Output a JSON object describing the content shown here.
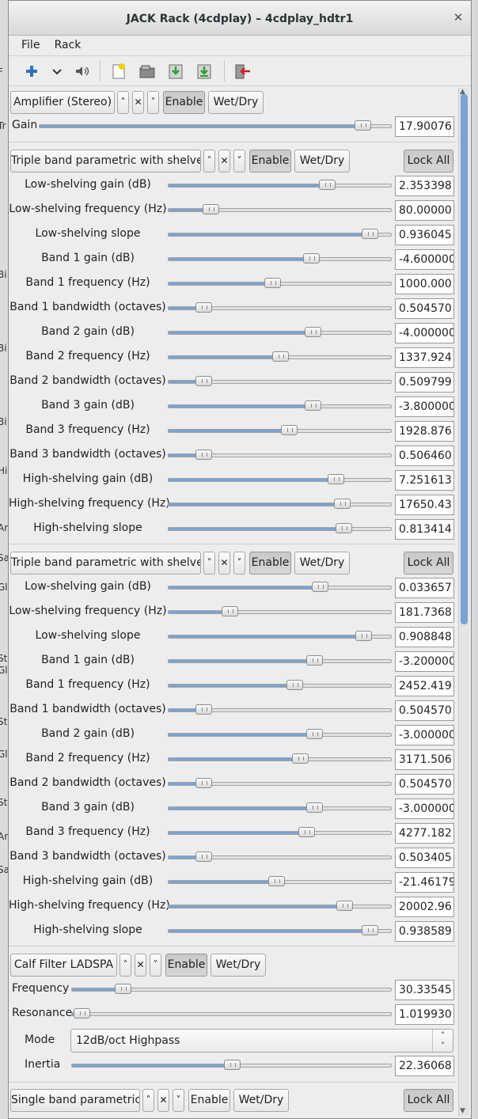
{
  "window": {
    "title": "JACK Rack (4cdplay) – 4cdplay_hdtr1",
    "close_glyph": "✕"
  },
  "menu": [
    {
      "label": "File"
    },
    {
      "label": "Rack"
    }
  ],
  "background_fragments": [
    "Tr",
    "F",
    "Bi",
    "Bi",
    "Bi",
    "Hig",
    "An",
    "Sa",
    "Gl",
    "Sta",
    "Gl",
    "Sta",
    "Gl",
    "Sta",
    "An",
    "Sa"
  ],
  "move_up_glyph": "˄",
  "remove_glyph": "✕",
  "move_down_glyph": "˅",
  "amplifier": {
    "name": "Amplifier (Stereo)",
    "enable": "Enable",
    "wetdry": "Wet/Dry",
    "controls": [
      {
        "label": "Gain",
        "value": "17.90076",
        "level": 0.92
      }
    ]
  },
  "eq1": {
    "name": "Triple band parametric with shelves",
    "enable": "Enable",
    "wetdry": "Wet/Dry",
    "lock": "Lock All",
    "controls": [
      {
        "label": "Low-shelving gain (dB)",
        "value": "2.353398",
        "level": 0.71
      },
      {
        "label": "Low-shelving frequency (Hz)",
        "value": "80.00000",
        "level": 0.19
      },
      {
        "label": "Low-shelving slope",
        "value": "0.936045",
        "level": 0.905
      },
      {
        "label": "Band 1 gain (dB)",
        "value": "-4.600000",
        "level": 0.64
      },
      {
        "label": "Band 1 frequency (Hz)",
        "value": "1000.000",
        "level": 0.465
      },
      {
        "label": "Band 1 bandwidth (octaves)",
        "value": "0.504570",
        "level": 0.155
      },
      {
        "label": "Band 2 gain (dB)",
        "value": "-4.000000",
        "level": 0.648
      },
      {
        "label": "Band 2 frequency (Hz)",
        "value": "1337.924",
        "level": 0.5
      },
      {
        "label": "Band 2 bandwidth (octaves)",
        "value": "0.509799",
        "level": 0.155
      },
      {
        "label": "Band 3 gain (dB)",
        "value": "-3.800000",
        "level": 0.648
      },
      {
        "label": "Band 3 frequency (Hz)",
        "value": "1928.876",
        "level": 0.54
      },
      {
        "label": "Band 3 bandwidth (octaves)",
        "value": "0.506460",
        "level": 0.155
      },
      {
        "label": "High-shelving gain (dB)",
        "value": "7.251613",
        "level": 0.75
      },
      {
        "label": "High-shelving frequency (Hz)",
        "value": "17650.43",
        "level": 0.778
      },
      {
        "label": "High-shelving slope",
        "value": "0.813414",
        "level": 0.785
      }
    ]
  },
  "eq2": {
    "name": "Triple band parametric with shelves",
    "enable": "Enable",
    "wetdry": "Wet/Dry",
    "lock": "Lock All",
    "controls": [
      {
        "label": "Low-shelving gain (dB)",
        "value": "0.033657",
        "level": 0.68
      },
      {
        "label": "Low-shelving frequency (Hz)",
        "value": "181.7368",
        "level": 0.275
      },
      {
        "label": "Low-shelving slope",
        "value": "0.908848",
        "level": 0.875
      },
      {
        "label": "Band 1 gain (dB)",
        "value": "-3.200000",
        "level": 0.655
      },
      {
        "label": "Band 1 frequency (Hz)",
        "value": "2452.419",
        "level": 0.565
      },
      {
        "label": "Band 1 bandwidth (octaves)",
        "value": "0.504570",
        "level": 0.155
      },
      {
        "label": "Band 2 gain (dB)",
        "value": "-3.000000",
        "level": 0.655
      },
      {
        "label": "Band 2 frequency (Hz)",
        "value": "3171.506",
        "level": 0.59
      },
      {
        "label": "Band 2 bandwidth (octaves)",
        "value": "0.504570",
        "level": 0.155
      },
      {
        "label": "Band 3 gain (dB)",
        "value": "-3.000000",
        "level": 0.655
      },
      {
        "label": "Band 3 frequency (Hz)",
        "value": "4277.182",
        "level": 0.62
      },
      {
        "label": "Band 3 bandwidth (octaves)",
        "value": "0.503405",
        "level": 0.155
      },
      {
        "label": "High-shelving gain (dB)",
        "value": "-21.46179",
        "level": 0.485
      },
      {
        "label": "High-shelving frequency (Hz)",
        "value": "20002.96",
        "level": 0.79
      },
      {
        "label": "High-shelving slope",
        "value": "0.938589",
        "level": 0.905
      }
    ]
  },
  "calf": {
    "name": "Calf Filter LADSPA",
    "enable": "Enable",
    "wetdry": "Wet/Dry",
    "controls": [
      {
        "label": "Frequency",
        "value": "30.33545",
        "level": 0.16
      },
      {
        "label": "Resonance",
        "value": "1.019930",
        "level": 0.03
      }
    ],
    "mode_label": "Mode",
    "mode_value": "12dB/oct Highpass",
    "controls2": [
      {
        "label": "Inertia",
        "value": "22.36068",
        "level": 0.5
      }
    ]
  },
  "single": {
    "name": "Single band parametric",
    "enable": "Enable",
    "wetdry": "Wet/Dry",
    "lock": "Lock All"
  }
}
